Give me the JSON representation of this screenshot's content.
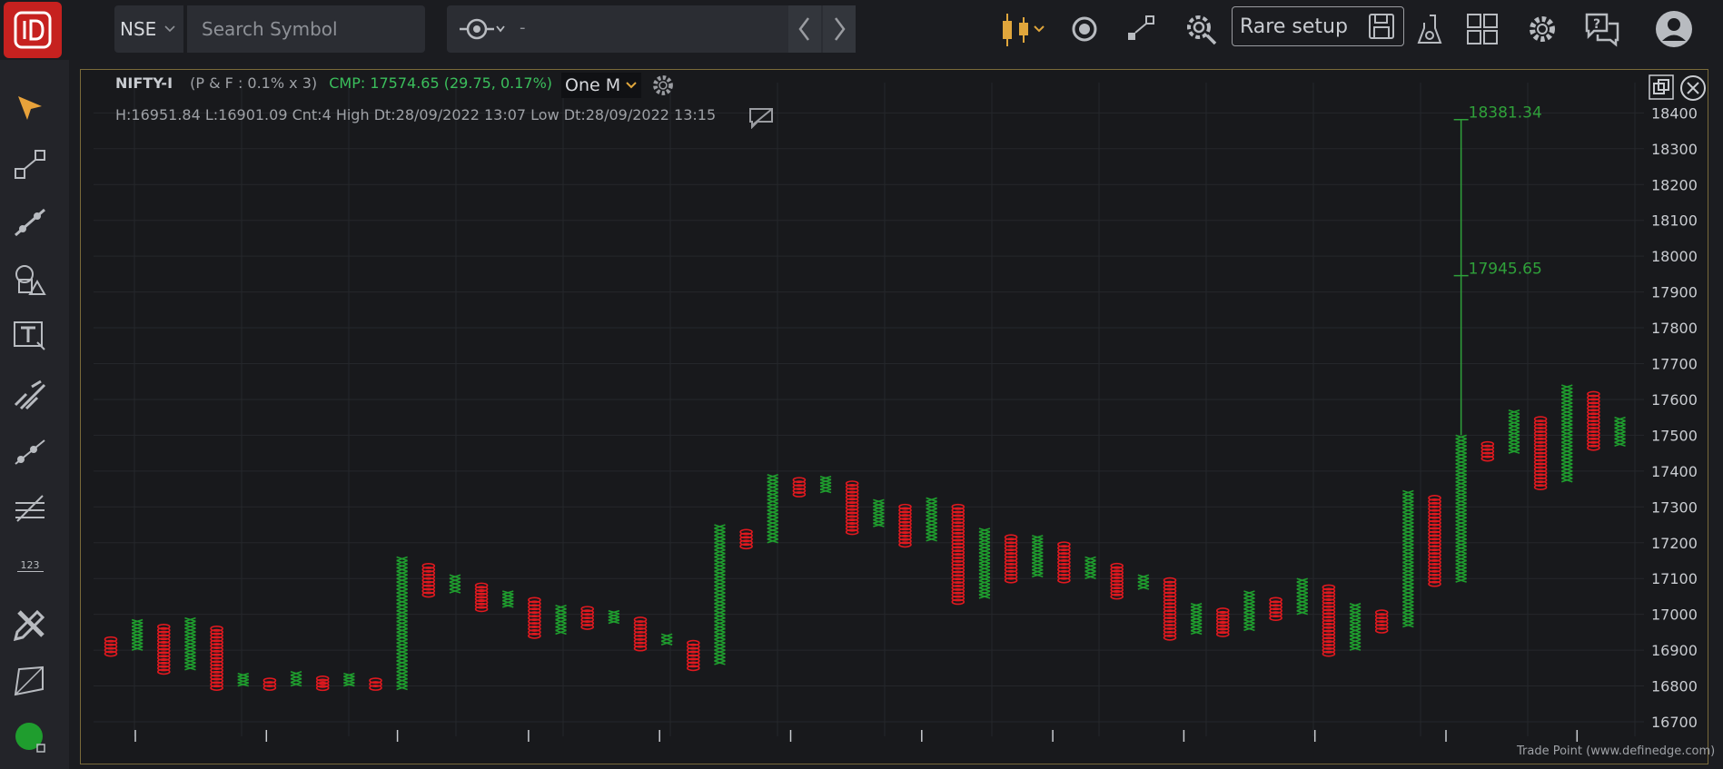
{
  "toolbar": {
    "exchange": "NSE",
    "search_placeholder": "Search Symbol",
    "study_value": "-",
    "rare_setup_label": "Rare setup",
    "icons": [
      "candlestick-icon",
      "alert-icon",
      "draw-tool-icon",
      "scan-settings-icon",
      "save-icon",
      "lab-icon",
      "layout-icon",
      "settings-icon",
      "help-icon",
      "user-icon"
    ]
  },
  "sidebar": {
    "tools": [
      "pointer-icon",
      "line-tool-icon",
      "trendline-icon",
      "shapes-icon",
      "text-tool-icon",
      "fork-tool-icon",
      "ray-tool-icon",
      "parallel-channel-icon",
      "numbering-icon",
      "pencil-ruler-icon",
      "gann-box-icon",
      "status-dot-icon"
    ],
    "numbering_label": "123",
    "colors": {
      "pointer": "#e8a23a",
      "status": "#1f9d2e"
    }
  },
  "chart_header": {
    "symbol": "NIFTY-I",
    "pf_params": "(P & F : 0.1% x 3)",
    "cmp": "CMP: 17574.65 (29.75, 0.17%)",
    "timeframe": "One M",
    "stats": "H:16951.84 L:16901.09 Cnt:4 High Dt:28/09/2022 13:07 Low Dt:28/09/2022 13:15"
  },
  "footer": "Trade Point (www.definedge.com)",
  "chart_data": {
    "type": "point-and-figure",
    "ylim": [
      16670,
      18430
    ],
    "y_ticks": [
      16700,
      16800,
      16900,
      17000,
      17100,
      17200,
      17300,
      17400,
      17500,
      17600,
      17700,
      17800,
      17900,
      18000,
      18100,
      18200,
      18300,
      18400
    ],
    "colors": {
      "x": "#1f9d2e",
      "o": "#e0191f",
      "target": "#2fa13a",
      "grid": "#25272b",
      "axis_text": "#c9ccd1"
    },
    "columns": [
      {
        "t": "o",
        "low": 16885,
        "high": 16935
      },
      {
        "t": "x",
        "low": 16900,
        "high": 16985
      },
      {
        "t": "o",
        "low": 16835,
        "high": 16970
      },
      {
        "t": "x",
        "low": 16845,
        "high": 16990
      },
      {
        "t": "o",
        "low": 16790,
        "high": 16965
      },
      {
        "t": "x",
        "low": 16800,
        "high": 16835
      },
      {
        "t": "o",
        "low": 16790,
        "high": 16820
      },
      {
        "t": "x",
        "low": 16800,
        "high": 16840
      },
      {
        "t": "o",
        "low": 16790,
        "high": 16825
      },
      {
        "t": "x",
        "low": 16800,
        "high": 16835
      },
      {
        "t": "o",
        "low": 16790,
        "high": 16820
      },
      {
        "t": "x",
        "low": 16790,
        "high": 17160
      },
      {
        "t": "o",
        "low": 17050,
        "high": 17140
      },
      {
        "t": "x",
        "low": 17060,
        "high": 17110
      },
      {
        "t": "o",
        "low": 17010,
        "high": 17085
      },
      {
        "t": "x",
        "low": 17020,
        "high": 17065
      },
      {
        "t": "o",
        "low": 16935,
        "high": 17045
      },
      {
        "t": "x",
        "low": 16945,
        "high": 17025
      },
      {
        "t": "o",
        "low": 16960,
        "high": 17020
      },
      {
        "t": "x",
        "low": 16975,
        "high": 17010
      },
      {
        "t": "o",
        "low": 16900,
        "high": 16990
      },
      {
        "t": "x",
        "low": 16915,
        "high": 16945
      },
      {
        "t": "o",
        "low": 16845,
        "high": 16925
      },
      {
        "t": "x",
        "low": 16860,
        "high": 17250
      },
      {
        "t": "o",
        "low": 17185,
        "high": 17235
      },
      {
        "t": "x",
        "low": 17200,
        "high": 17390
      },
      {
        "t": "o",
        "low": 17330,
        "high": 17380
      },
      {
        "t": "x",
        "low": 17340,
        "high": 17385
      },
      {
        "t": "o",
        "low": 17225,
        "high": 17370
      },
      {
        "t": "x",
        "low": 17245,
        "high": 17320
      },
      {
        "t": "o",
        "low": 17190,
        "high": 17305
      },
      {
        "t": "x",
        "low": 17205,
        "high": 17325
      },
      {
        "t": "o",
        "low": 17030,
        "high": 17305
      },
      {
        "t": "x",
        "low": 17045,
        "high": 17240
      },
      {
        "t": "o",
        "low": 17090,
        "high": 17220
      },
      {
        "t": "x",
        "low": 17105,
        "high": 17220
      },
      {
        "t": "o",
        "low": 17090,
        "high": 17200
      },
      {
        "t": "x",
        "low": 17100,
        "high": 17160
      },
      {
        "t": "o",
        "low": 17045,
        "high": 17140
      },
      {
        "t": "x",
        "low": 17070,
        "high": 17110
      },
      {
        "t": "o",
        "low": 16930,
        "high": 17100
      },
      {
        "t": "x",
        "low": 16945,
        "high": 17030
      },
      {
        "t": "o",
        "low": 16940,
        "high": 17015
      },
      {
        "t": "x",
        "low": 16955,
        "high": 17065
      },
      {
        "t": "o",
        "low": 16985,
        "high": 17045
      },
      {
        "t": "x",
        "low": 17000,
        "high": 17100
      },
      {
        "t": "o",
        "low": 16885,
        "high": 17080
      },
      {
        "t": "x",
        "low": 16900,
        "high": 17030
      },
      {
        "t": "o",
        "low": 16950,
        "high": 17010
      },
      {
        "t": "x",
        "low": 16965,
        "high": 17345
      },
      {
        "t": "o",
        "low": 17080,
        "high": 17330
      },
      {
        "t": "x",
        "low": 17090,
        "high": 17500
      },
      {
        "t": "o",
        "low": 17430,
        "high": 17480
      },
      {
        "t": "x",
        "low": 17450,
        "high": 17570
      },
      {
        "t": "o",
        "low": 17350,
        "high": 17550
      },
      {
        "t": "x",
        "low": 17370,
        "high": 17640
      },
      {
        "t": "o",
        "low": 17460,
        "high": 17620
      },
      {
        "t": "x",
        "low": 17470,
        "high": 17550
      }
    ],
    "targets": [
      {
        "col": 51,
        "value": 18381.34,
        "label": "18381.34"
      },
      {
        "col": 51,
        "value": 17945.65,
        "label": "17945.65"
      }
    ],
    "target_line": {
      "col": 51,
      "from": 17500,
      "to": 18381.34
    }
  }
}
